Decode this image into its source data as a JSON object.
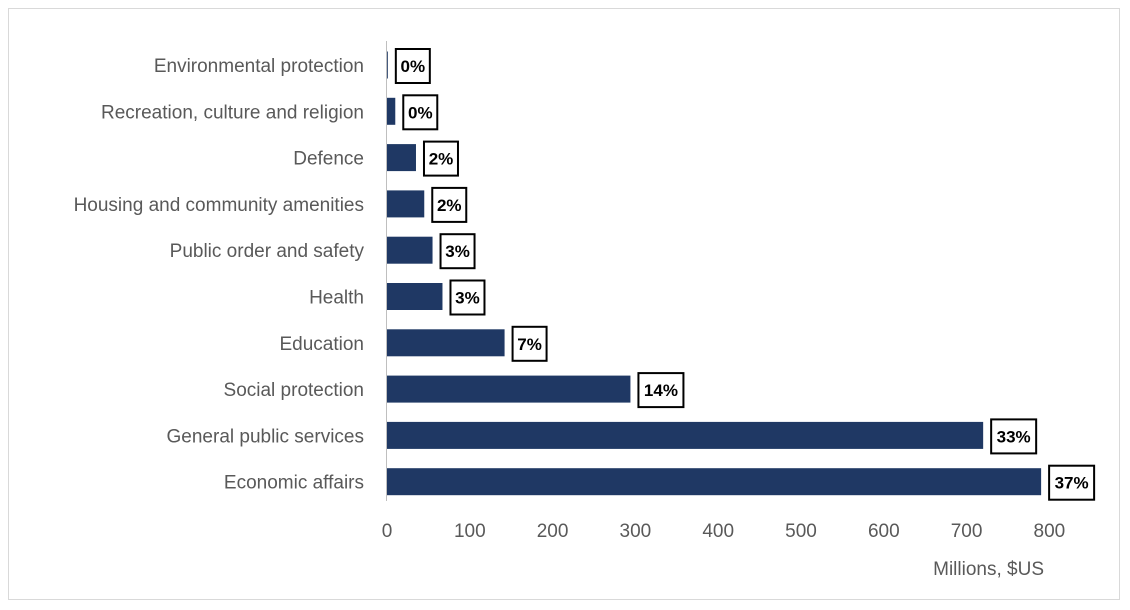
{
  "chart_data": {
    "type": "bar",
    "orientation": "horizontal",
    "categories": [
      "Environmental protection",
      "Recreation, culture and religion",
      "Defence",
      "Housing and community amenities",
      "Public order and safety",
      "Health",
      "Education",
      "Social protection",
      "General public services",
      "Economic affairs"
    ],
    "values": [
      1,
      10,
      35,
      45,
      55,
      67,
      142,
      294,
      720,
      790
    ],
    "data_labels": [
      "0%",
      "0%",
      "2%",
      "2%",
      "3%",
      "3%",
      "7%",
      "14%",
      "33%",
      "37%"
    ],
    "xlabel": "Millions, $US",
    "ylabel": "",
    "xlim": [
      0,
      800
    ],
    "xticks": [
      "0",
      "100",
      "200",
      "300",
      "400",
      "500",
      "600",
      "700",
      "800"
    ],
    "bar_color": "#1f3864",
    "grid": false,
    "legend": false
  }
}
